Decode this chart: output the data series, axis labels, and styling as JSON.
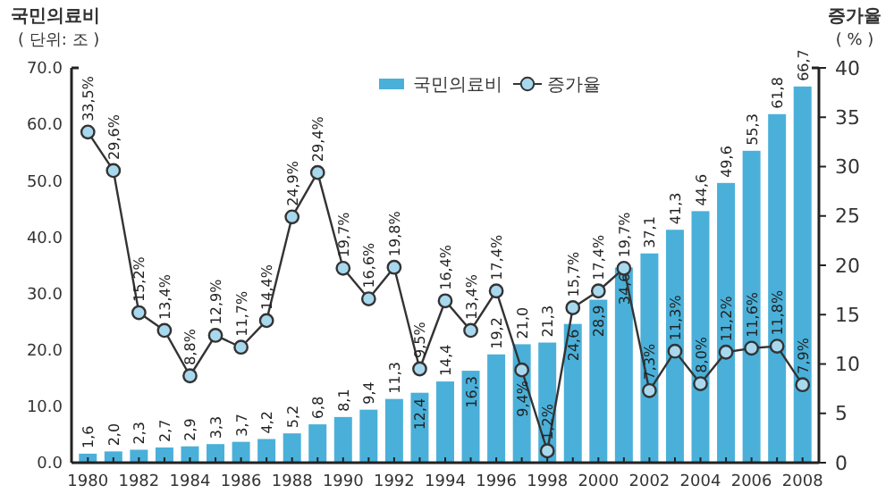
{
  "chart_data": {
    "type": "bar",
    "ylabel": "국민의료비",
    "y2label": "증가율",
    "annotations": [
      "( 단위: 조 )",
      "( % )"
    ],
    "categories": [
      "1980",
      null,
      "1982",
      null,
      "1984",
      null,
      "1986",
      null,
      "1988",
      null,
      "1990",
      null,
      "1992",
      null,
      "1994",
      null,
      "1996",
      null,
      "1998",
      null,
      "2000",
      null,
      "2002",
      null,
      "2004",
      null,
      "2006",
      null,
      "2008"
    ],
    "ylim": [
      0,
      70
    ],
    "yticks": [
      {
        "value": 0,
        "label": "0.0"
      },
      {
        "value": 10,
        "label": "10.0"
      },
      {
        "value": 20,
        "label": "20.0"
      },
      {
        "value": 30,
        "label": "30.0"
      },
      {
        "value": 40,
        "label": "40.0"
      },
      {
        "value": 50,
        "label": "50.0"
      },
      {
        "value": 60,
        "label": "60.0"
      },
      {
        "value": 70,
        "label": "70.0"
      }
    ],
    "y2lim": [
      0,
      40
    ],
    "y2ticks": [
      0,
      5,
      10,
      15,
      20,
      25,
      30,
      35,
      40
    ],
    "legend": "top right",
    "grid": false,
    "series": [
      {
        "name": "국민의료비",
        "color": "#4ab0d9",
        "values": [
          1.6,
          2.0,
          2.3,
          2.7,
          2.9,
          3.3,
          3.7,
          4.2,
          5.2,
          6.8,
          8.1,
          9.4,
          11.3,
          12.4,
          14.4,
          16.3,
          19.2,
          21.0,
          21.3,
          24.6,
          28.9,
          34.6,
          37.1,
          41.3,
          44.6,
          49.6,
          55.3,
          61.8,
          66.7
        ],
        "value_labels": [
          "1,6",
          "2,0",
          "2,3",
          "2,7",
          "2,9",
          "3,3",
          "3,7",
          "4,2",
          "5,2",
          "6,8",
          "8,1",
          "9,4",
          "11,3",
          "12,4",
          "14,4",
          "16,3",
          "19,2",
          "21,0",
          "21,3",
          "24,6",
          "28,9",
          "34,6",
          "37,1",
          "41,3",
          "44,6",
          "49,6",
          "55,3",
          "61,8",
          "66,7"
        ]
      },
      {
        "name": "증가율",
        "type": "line",
        "axis": "y2",
        "color": "#333333",
        "marker": "circle",
        "values": [
          33.5,
          29.6,
          15.2,
          13.4,
          8.8,
          12.9,
          11.7,
          14.4,
          24.9,
          29.4,
          19.7,
          16.6,
          19.8,
          9.5,
          16.4,
          13.4,
          17.4,
          9.4,
          1.2,
          15.7,
          17.4,
          19.7,
          7.3,
          11.3,
          8.0,
          11.2,
          11.6,
          11.8,
          7.9
        ],
        "value_labels": [
          "33,5%",
          "29,6%",
          "15,2%",
          "13,4%",
          "8,8%",
          "12,9%",
          "11,7%",
          "14,4%",
          "24,9%",
          "29,4%",
          "19,7%",
          "16,6%",
          "19,8%",
          "9,5%",
          "16,4%",
          "13,4%",
          "17,4%",
          "9,4%",
          "1,2%",
          "15,7%",
          "17,4%",
          "19,7%",
          "7,3%",
          "11,3%",
          "8,0%",
          "11,2%",
          "11,6%",
          "11,8%",
          "7,9%"
        ]
      }
    ]
  }
}
